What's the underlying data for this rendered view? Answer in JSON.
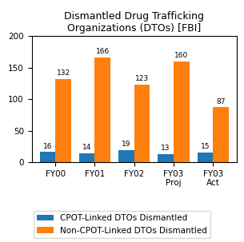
{
  "chart_data": {
    "type": "bar",
    "title": "Dismantled Drug Trafficking\nOrganizations (DTOs) [FBI]",
    "categories": [
      "FY00",
      "FY01",
      "FY02",
      "FY03\nProj",
      "FY03\nAct"
    ],
    "series": [
      {
        "name": "CPOT-Linked DTOs Dismantled",
        "values": [
          16,
          14,
          19,
          13,
          15
        ]
      },
      {
        "name": "Non-CPOT-Linked DTOs Dismantled",
        "values": [
          132,
          166,
          123,
          160,
          87
        ]
      }
    ],
    "ylim": [
      0,
      200
    ],
    "yticks": [
      0,
      50,
      100,
      150,
      200
    ],
    "grid": false,
    "legend": "lower center",
    "data_labels": true
  }
}
